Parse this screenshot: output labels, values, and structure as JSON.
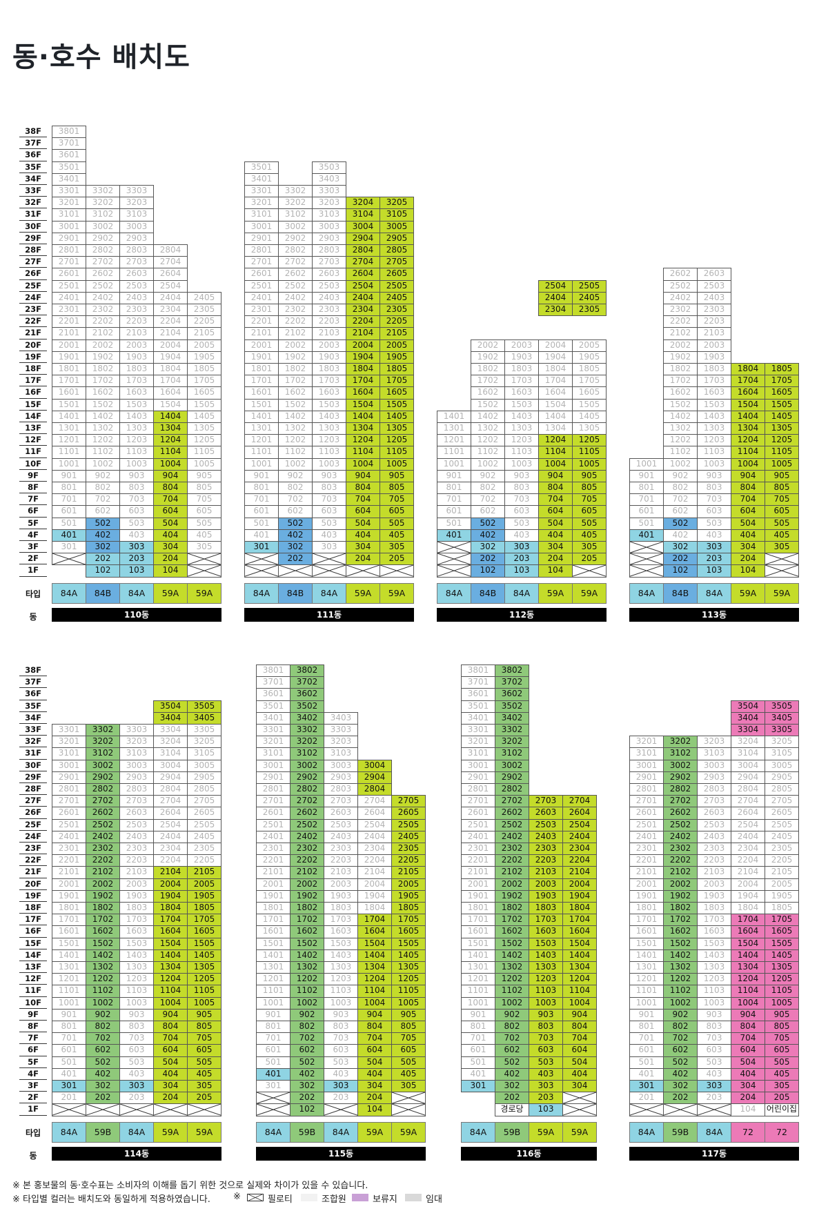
{
  "title": "동·호수 배치도",
  "labels": {
    "type": "타입",
    "building": "동"
  },
  "colors": {
    "union": "#ffffff",
    "sale_green": "#c4dc2a",
    "sale_dark_green": "#8fc97a",
    "type_84B": "#6aaee0",
    "type_84A": "#8fd4e3",
    "reserve": "#ec7ab7",
    "rental": "#d9d9d9"
  },
  "pilotis_icon": "pilotis-cross-icon",
  "buildings": [
    {
      "name": "110동",
      "types": [
        "84A",
        "84B",
        "84A",
        "59A",
        "59A"
      ],
      "floors": [
        38,
        33,
        33,
        28,
        24
      ],
      "green": {
        "4": [
          [
            1,
            14
          ]
        ]
      },
      "blue": {
        "2": [
          [
            3,
            5
          ]
        ]
      },
      "cyan": {
        "1": [
          [
            4,
            4
          ]
        ],
        "2": [
          [
            1,
            3
          ]
        ],
        "3": [
          [
            1,
            3
          ]
        ]
      },
      "pilotis": {
        "1": [
          [
            1,
            2
          ]
        ],
        "5": [
          [
            1,
            2
          ]
        ]
      },
      "voids": {
        "1": [
          [
            1,
            1
          ]
        ]
      }
    },
    {
      "name": "111동",
      "types": [
        "84A",
        "84B",
        "84A",
        "59A",
        "59A"
      ],
      "floors": [
        35,
        33,
        35,
        32,
        32
      ],
      "green": {
        "4": [
          [
            1,
            32
          ]
        ],
        "5": [
          [
            1,
            32
          ]
        ]
      },
      "blue": {
        "2": [
          [
            2,
            5
          ]
        ]
      },
      "cyan": {
        "1": [
          [
            3,
            3
          ]
        ]
      },
      "pilotis": {
        "1": [
          [
            1,
            2
          ]
        ],
        "2": [
          [
            1,
            1
          ]
        ],
        "3": [
          [
            1,
            2
          ]
        ],
        "4": [
          [
            1,
            1
          ]
        ],
        "5": [
          [
            1,
            1
          ]
        ]
      }
    },
    {
      "name": "112동",
      "types": [
        "84A",
        "84B",
        "84A",
        "59A",
        "59A"
      ],
      "floors": [
        14,
        20,
        20,
        25,
        25
      ],
      "green": {
        "4": [
          [
            1,
            12
          ],
          [
            23,
            25
          ]
        ],
        "5": [
          [
            1,
            12
          ],
          [
            23,
            25
          ]
        ]
      },
      "blue": {
        "2": [
          [
            1,
            2
          ],
          [
            4,
            5
          ]
        ]
      },
      "cyan": {
        "1": [
          [
            4,
            4
          ]
        ],
        "2": [
          [
            3,
            3
          ]
        ],
        "3": [
          [
            1,
            3
          ]
        ]
      },
      "pilotis": {
        "1": [
          [
            1,
            3
          ]
        ],
        "5": [
          [
            1,
            1
          ]
        ]
      },
      "voids": {
        "4": [
          [
            21,
            22
          ]
        ],
        "5": [
          [
            21,
            22
          ]
        ]
      }
    },
    {
      "name": "113동",
      "types": [
        "84A",
        "84B",
        "84A",
        "59A",
        "59A"
      ],
      "floors": [
        10,
        26,
        26,
        18,
        18
      ],
      "green": {
        "4": [
          [
            1,
            18
          ]
        ],
        "5": [
          [
            1,
            18
          ]
        ]
      },
      "blue": {
        "2": [
          [
            1,
            2
          ],
          [
            5,
            5
          ]
        ]
      },
      "cyan": {
        "1": [
          [
            4,
            4
          ]
        ],
        "2": [
          [
            3,
            3
          ]
        ],
        "3": [
          [
            1,
            3
          ]
        ]
      },
      "pilotis": {
        "1": [
          [
            1,
            3
          ]
        ],
        "5": [
          [
            1,
            2
          ]
        ]
      }
    },
    {
      "name": "114동",
      "types": [
        "84A",
        "59B",
        "84A",
        "59A",
        "59A"
      ],
      "floors": [
        33,
        33,
        33,
        35,
        35
      ],
      "darkgreen": {
        "2": [
          [
            2,
            33
          ]
        ]
      },
      "green": {
        "4": [
          [
            2,
            21
          ],
          [
            34,
            35
          ]
        ],
        "5": [
          [
            2,
            21
          ],
          [
            34,
            35
          ]
        ]
      },
      "cyan": {
        "1": [
          [
            3,
            3
          ]
        ],
        "2": [
          [
            3,
            3
          ]
        ],
        "3": [
          [
            3,
            3
          ]
        ]
      },
      "pilotis": {
        "1": [
          [
            1,
            1
          ]
        ],
        "2": [
          [
            1,
            1
          ]
        ],
        "3": [
          [
            1,
            1
          ]
        ],
        "4": [
          [
            1,
            1
          ]
        ],
        "5": [
          [
            1,
            1
          ]
        ]
      }
    },
    {
      "name": "115동",
      "types": [
        "84A",
        "59B",
        "84A",
        "59A",
        "59A"
      ],
      "floors": [
        38,
        38,
        34,
        30,
        27
      ],
      "darkgreen": {
        "2": [
          [
            1,
            38
          ]
        ]
      },
      "green": {
        "4": [
          [
            1,
            17
          ],
          [
            28,
            30
          ]
        ],
        "5": [
          [
            1,
            27
          ]
        ]
      },
      "cyan": {
        "1": [
          [
            4,
            4
          ]
        ],
        "3": [
          [
            1,
            1
          ],
          [
            3,
            3
          ]
        ]
      },
      "pilotis": {
        "1": [
          [
            1,
            2
          ]
        ],
        "3": [
          [
            1,
            1
          ]
        ],
        "5": [
          [
            1,
            2
          ]
        ]
      },
      "darkgreen_only": true
    },
    {
      "name": "116동",
      "types": [
        "84A",
        "59B",
        "59A",
        "59A"
      ],
      "floors": [
        38,
        38,
        27,
        27
      ],
      "darkgreen": {
        "2": [
          [
            2,
            38
          ]
        ]
      },
      "green": {
        "3": [
          [
            1,
            27
          ]
        ],
        "4": [
          [
            3,
            27
          ]
        ]
      },
      "cyan": {
        "1": [
          [
            3,
            3
          ]
        ]
      },
      "pilotis": {
        "4": [
          [
            1,
            2
          ]
        ]
      },
      "voids": {
        "1": [
          [
            1,
            2
          ]
        ]
      }
    },
    {
      "name": "117동",
      "types": [
        "84A",
        "59B",
        "84A",
        "72",
        "72"
      ],
      "floors": [
        32,
        32,
        32,
        35,
        35
      ],
      "darkgreen": {
        "2": [
          [
            2,
            32
          ]
        ]
      },
      "pink": {
        "4": [
          [
            2,
            17
          ],
          [
            33,
            35
          ]
        ],
        "5": [
          [
            2,
            17
          ],
          [
            33,
            35
          ]
        ]
      },
      "cyan": {
        "1": [
          [
            3,
            3
          ]
        ],
        "3": [
          [
            3,
            3
          ]
        ]
      },
      "pilotis": {
        "1": [
          [
            1,
            1
          ]
        ],
        "2": [
          [
            1,
            1
          ]
        ],
        "3": [
          [
            1,
            1
          ]
        ]
      }
    }
  ],
  "special_cells": {
    "116동": {
      "1-2": "경로당",
      "1-3": "103"
    },
    "117동": {
      "1-5": "어린이집"
    }
  },
  "footnotes": [
    "※ 본 홍보물의 동·호수표는 소비자의 이해를 돕기 위한 것으로 실제와 차이가 있을 수 있습니다.",
    "※ 타입별 컬러는 배치도와 동일하게 적용하였습니다."
  ],
  "legend": {
    "mark": "※",
    "pilotis": "필로티",
    "union": "조합원",
    "reserve": "보류지",
    "rental": "임대"
  }
}
